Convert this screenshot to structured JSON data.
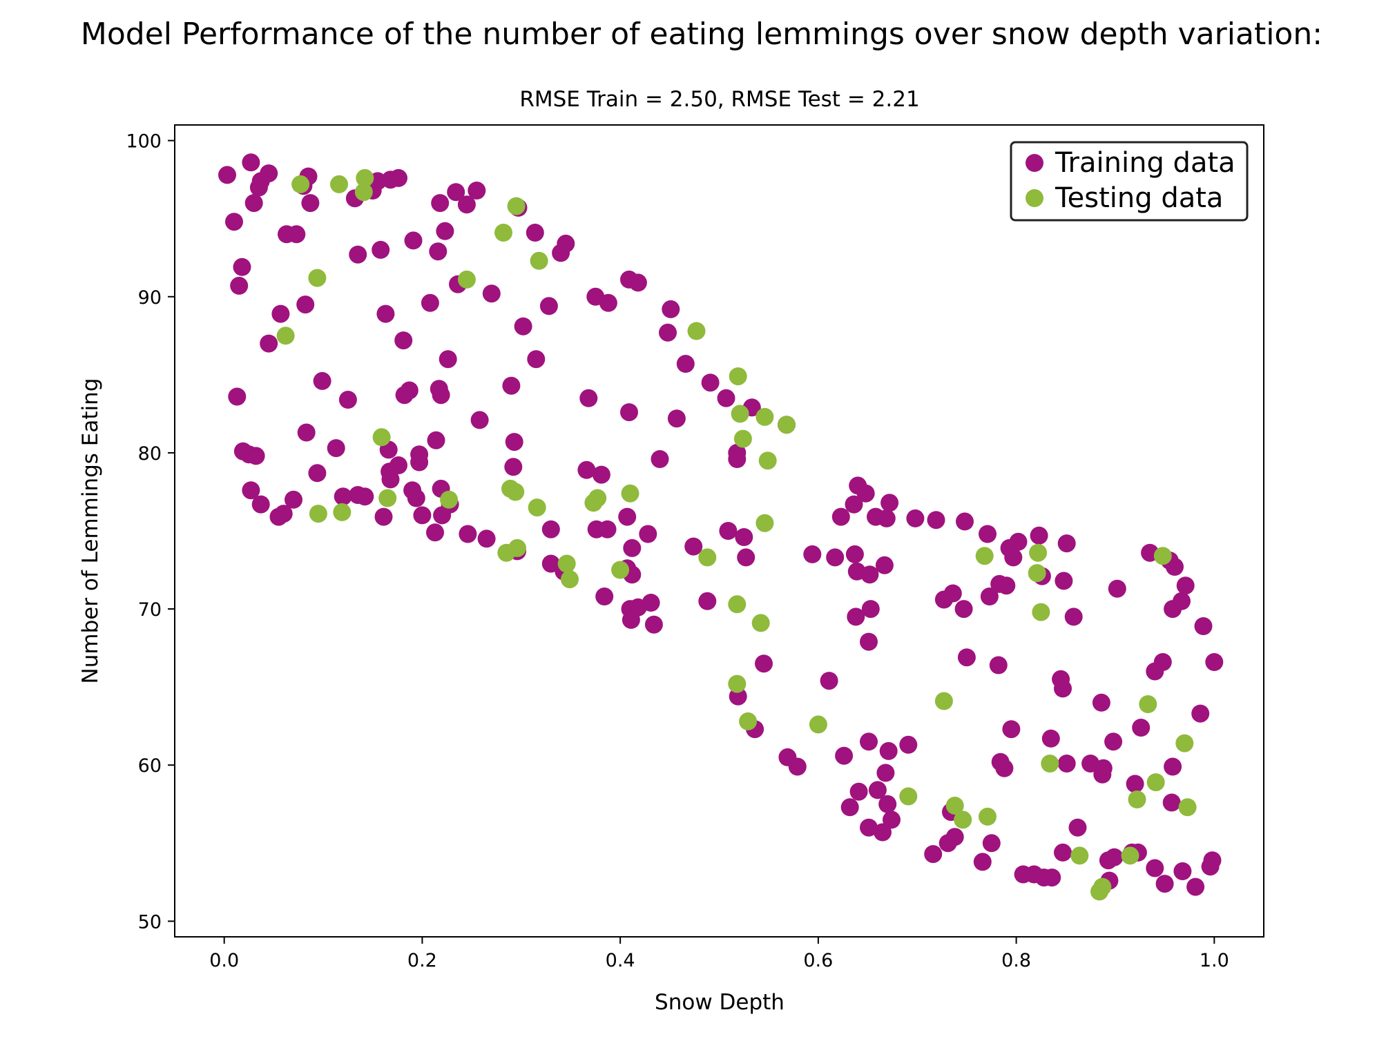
{
  "chart_data": {
    "type": "scatter",
    "title": "Model Performance of the number of eating lemmings over snow depth variation:",
    "subtitle": "RMSE Train = 2.50, RMSE Test = 2.21",
    "xlabel": "Snow Depth",
    "ylabel": "Number of Lemmings Eating",
    "xlim": [
      -0.05,
      1.05
    ],
    "ylim": [
      49,
      101
    ],
    "xticks": [
      0.0,
      0.2,
      0.4,
      0.6,
      0.8,
      1.0
    ],
    "xtick_labels": [
      "0.0",
      "0.2",
      "0.4",
      "0.6",
      "0.8",
      "1.0"
    ],
    "yticks": [
      50,
      60,
      70,
      80,
      90,
      100
    ],
    "ytick_labels": [
      "50",
      "60",
      "70",
      "80",
      "90",
      "100"
    ],
    "grid": false,
    "legend_position": "top-right",
    "series": [
      {
        "name": "Training data",
        "color": "#a0127e",
        "points": [
          [
            0.003,
            97.8
          ],
          [
            0.027,
            98.6
          ],
          [
            0.045,
            97.9
          ],
          [
            0.037,
            97.4
          ],
          [
            0.035,
            97.0
          ],
          [
            0.08,
            97.1
          ],
          [
            0.085,
            97.7
          ],
          [
            0.15,
            96.8
          ],
          [
            0.155,
            97.4
          ],
          [
            0.168,
            97.5
          ],
          [
            0.176,
            97.6
          ],
          [
            0.03,
            96.0
          ],
          [
            0.087,
            96.0
          ],
          [
            0.132,
            96.3
          ],
          [
            0.234,
            96.7
          ],
          [
            0.255,
            96.8
          ],
          [
            0.218,
            96.0
          ],
          [
            0.245,
            95.9
          ],
          [
            0.297,
            95.7
          ],
          [
            0.01,
            94.8
          ],
          [
            0.063,
            94.0
          ],
          [
            0.073,
            94.0
          ],
          [
            0.191,
            93.6
          ],
          [
            0.223,
            94.2
          ],
          [
            0.314,
            94.1
          ],
          [
            0.345,
            93.4
          ],
          [
            0.135,
            92.7
          ],
          [
            0.158,
            93.0
          ],
          [
            0.216,
            92.9
          ],
          [
            0.34,
            92.8
          ],
          [
            0.018,
            91.9
          ],
          [
            0.015,
            90.7
          ],
          [
            0.236,
            90.8
          ],
          [
            0.27,
            90.2
          ],
          [
            0.409,
            91.1
          ],
          [
            0.418,
            90.9
          ],
          [
            0.082,
            89.5
          ],
          [
            0.208,
            89.6
          ],
          [
            0.328,
            89.4
          ],
          [
            0.375,
            90.0
          ],
          [
            0.388,
            89.6
          ],
          [
            0.451,
            89.2
          ],
          [
            0.057,
            88.9
          ],
          [
            0.163,
            88.9
          ],
          [
            0.302,
            88.1
          ],
          [
            0.448,
            87.7
          ],
          [
            0.045,
            87.0
          ],
          [
            0.181,
            87.2
          ],
          [
            0.226,
            86.0
          ],
          [
            0.315,
            86.0
          ],
          [
            0.466,
            85.7
          ],
          [
            0.099,
            84.6
          ],
          [
            0.29,
            84.3
          ],
          [
            0.491,
            84.5
          ],
          [
            0.013,
            83.6
          ],
          [
            0.125,
            83.4
          ],
          [
            0.182,
            83.7
          ],
          [
            0.187,
            84.0
          ],
          [
            0.217,
            84.1
          ],
          [
            0.219,
            83.7
          ],
          [
            0.368,
            83.5
          ],
          [
            0.507,
            83.5
          ],
          [
            0.533,
            82.9
          ],
          [
            0.258,
            82.1
          ],
          [
            0.409,
            82.6
          ],
          [
            0.457,
            82.2
          ],
          [
            0.568,
            81.8
          ],
          [
            0.083,
            81.3
          ],
          [
            0.214,
            80.8
          ],
          [
            0.293,
            80.7
          ],
          [
            0.019,
            80.1
          ],
          [
            0.025,
            79.9
          ],
          [
            0.032,
            79.8
          ],
          [
            0.113,
            80.3
          ],
          [
            0.166,
            80.2
          ],
          [
            0.197,
            79.9
          ],
          [
            0.197,
            79.4
          ],
          [
            0.518,
            79.6
          ],
          [
            0.518,
            80.0
          ],
          [
            0.44,
            79.6
          ],
          [
            0.094,
            78.7
          ],
          [
            0.167,
            78.8
          ],
          [
            0.168,
            78.3
          ],
          [
            0.176,
            79.2
          ],
          [
            0.292,
            79.1
          ],
          [
            0.366,
            78.9
          ],
          [
            0.381,
            78.6
          ],
          [
            0.027,
            77.6
          ],
          [
            0.037,
            76.7
          ],
          [
            0.07,
            77.0
          ],
          [
            0.12,
            77.2
          ],
          [
            0.135,
            77.3
          ],
          [
            0.142,
            77.2
          ],
          [
            0.19,
            77.6
          ],
          [
            0.194,
            77.1
          ],
          [
            0.219,
            77.7
          ],
          [
            0.228,
            76.7
          ],
          [
            0.64,
            77.9
          ],
          [
            0.648,
            77.4
          ],
          [
            0.672,
            76.8
          ],
          [
            0.055,
            75.9
          ],
          [
            0.06,
            76.1
          ],
          [
            0.161,
            75.9
          ],
          [
            0.2,
            76.0
          ],
          [
            0.22,
            76.0
          ],
          [
            0.407,
            75.9
          ],
          [
            0.623,
            75.9
          ],
          [
            0.658,
            75.9
          ],
          [
            0.669,
            75.8
          ],
          [
            0.698,
            75.8
          ],
          [
            0.719,
            75.7
          ],
          [
            0.748,
            75.6
          ],
          [
            0.636,
            76.7
          ],
          [
            0.213,
            74.9
          ],
          [
            0.246,
            74.8
          ],
          [
            0.265,
            74.5
          ],
          [
            0.33,
            75.1
          ],
          [
            0.376,
            75.1
          ],
          [
            0.387,
            75.1
          ],
          [
            0.428,
            74.8
          ],
          [
            0.474,
            74.0
          ],
          [
            0.509,
            75.0
          ],
          [
            0.525,
            74.6
          ],
          [
            0.771,
            74.8
          ],
          [
            0.793,
            73.9
          ],
          [
            0.802,
            74.3
          ],
          [
            0.823,
            74.7
          ],
          [
            0.851,
            74.2
          ],
          [
            0.296,
            73.7
          ],
          [
            0.412,
            73.9
          ],
          [
            0.527,
            73.3
          ],
          [
            0.594,
            73.5
          ],
          [
            0.617,
            73.3
          ],
          [
            0.637,
            73.5
          ],
          [
            0.797,
            73.3
          ],
          [
            0.935,
            73.6
          ],
          [
            0.955,
            73.1
          ],
          [
            0.33,
            72.9
          ],
          [
            0.343,
            72.4
          ],
          [
            0.407,
            72.6
          ],
          [
            0.412,
            72.2
          ],
          [
            0.639,
            72.4
          ],
          [
            0.652,
            72.2
          ],
          [
            0.667,
            72.8
          ],
          [
            0.826,
            72.1
          ],
          [
            0.848,
            71.8
          ],
          [
            0.96,
            72.7
          ],
          [
            0.727,
            70.6
          ],
          [
            0.736,
            71.0
          ],
          [
            0.747,
            70.0
          ],
          [
            0.773,
            70.8
          ],
          [
            0.783,
            71.6
          ],
          [
            0.79,
            71.5
          ],
          [
            0.902,
            71.3
          ],
          [
            0.971,
            71.5
          ],
          [
            0.384,
            70.8
          ],
          [
            0.41,
            70.0
          ],
          [
            0.411,
            69.3
          ],
          [
            0.418,
            70.1
          ],
          [
            0.431,
            70.4
          ],
          [
            0.434,
            69.0
          ],
          [
            0.488,
            70.5
          ],
          [
            0.638,
            69.5
          ],
          [
            0.653,
            70.0
          ],
          [
            0.858,
            69.5
          ],
          [
            0.958,
            70.0
          ],
          [
            0.967,
            70.5
          ],
          [
            0.989,
            68.9
          ],
          [
            0.651,
            67.9
          ],
          [
            0.545,
            66.5
          ],
          [
            0.75,
            66.9
          ],
          [
            0.782,
            66.4
          ],
          [
            0.845,
            65.5
          ],
          [
            0.847,
            64.9
          ],
          [
            0.94,
            66.0
          ],
          [
            0.948,
            66.6
          ],
          [
            1.0,
            66.6
          ],
          [
            0.519,
            64.4
          ],
          [
            0.611,
            65.4
          ],
          [
            0.886,
            64.0
          ],
          [
            0.986,
            63.3
          ],
          [
            0.536,
            62.3
          ],
          [
            0.651,
            61.5
          ],
          [
            0.691,
            61.3
          ],
          [
            0.795,
            62.3
          ],
          [
            0.835,
            61.7
          ],
          [
            0.898,
            61.5
          ],
          [
            0.926,
            62.4
          ],
          [
            0.569,
            60.5
          ],
          [
            0.579,
            59.9
          ],
          [
            0.626,
            60.6
          ],
          [
            0.671,
            60.9
          ],
          [
            0.668,
            59.5
          ],
          [
            0.784,
            60.2
          ],
          [
            0.788,
            59.8
          ],
          [
            0.851,
            60.1
          ],
          [
            0.875,
            60.1
          ],
          [
            0.888,
            59.8
          ],
          [
            0.887,
            59.4
          ],
          [
            0.92,
            58.8
          ],
          [
            0.958,
            59.9
          ],
          [
            0.632,
            57.3
          ],
          [
            0.641,
            58.3
          ],
          [
            0.66,
            58.4
          ],
          [
            0.67,
            57.5
          ],
          [
            0.674,
            56.5
          ],
          [
            0.734,
            57.0
          ],
          [
            0.957,
            57.6
          ],
          [
            0.651,
            56.0
          ],
          [
            0.665,
            55.7
          ],
          [
            0.716,
            54.3
          ],
          [
            0.731,
            55.0
          ],
          [
            0.738,
            55.4
          ],
          [
            0.766,
            53.8
          ],
          [
            0.775,
            55.0
          ],
          [
            0.847,
            54.4
          ],
          [
            0.862,
            56.0
          ],
          [
            0.893,
            53.9
          ],
          [
            0.899,
            54.1
          ],
          [
            0.917,
            54.4
          ],
          [
            0.923,
            54.4
          ],
          [
            0.94,
            53.4
          ],
          [
            0.95,
            52.4
          ],
          [
            0.968,
            53.2
          ],
          [
            0.998,
            53.9
          ],
          [
            0.996,
            53.5
          ],
          [
            0.807,
            53.0
          ],
          [
            0.818,
            53.0
          ],
          [
            0.828,
            52.8
          ],
          [
            0.836,
            52.8
          ],
          [
            0.894,
            52.6
          ],
          [
            0.981,
            52.2
          ]
        ]
      },
      {
        "name": "Testing data",
        "color": "#8fba3c",
        "points": [
          [
            0.077,
            97.2
          ],
          [
            0.116,
            97.2
          ],
          [
            0.142,
            97.6
          ],
          [
            0.141,
            96.7
          ],
          [
            0.295,
            95.8
          ],
          [
            0.282,
            94.1
          ],
          [
            0.318,
            92.3
          ],
          [
            0.094,
            91.2
          ],
          [
            0.245,
            91.1
          ],
          [
            0.062,
            87.5
          ],
          [
            0.477,
            87.8
          ],
          [
            0.519,
            84.9
          ],
          [
            0.521,
            82.5
          ],
          [
            0.546,
            82.3
          ],
          [
            0.568,
            81.8
          ],
          [
            0.524,
            80.9
          ],
          [
            0.549,
            79.5
          ],
          [
            0.159,
            81.0
          ],
          [
            0.165,
            77.1
          ],
          [
            0.227,
            77.0
          ],
          [
            0.289,
            77.7
          ],
          [
            0.294,
            77.5
          ],
          [
            0.316,
            76.5
          ],
          [
            0.373,
            76.8
          ],
          [
            0.377,
            77.1
          ],
          [
            0.41,
            77.4
          ],
          [
            0.095,
            76.1
          ],
          [
            0.119,
            76.2
          ],
          [
            0.546,
            75.5
          ],
          [
            0.285,
            73.6
          ],
          [
            0.296,
            73.9
          ],
          [
            0.346,
            72.9
          ],
          [
            0.349,
            71.9
          ],
          [
            0.4,
            72.5
          ],
          [
            0.488,
            73.3
          ],
          [
            0.768,
            73.4
          ],
          [
            0.822,
            73.6
          ],
          [
            0.821,
            72.3
          ],
          [
            0.518,
            70.3
          ],
          [
            0.542,
            69.1
          ],
          [
            0.825,
            69.8
          ],
          [
            0.948,
            73.4
          ],
          [
            0.518,
            65.2
          ],
          [
            0.529,
            62.8
          ],
          [
            0.6,
            62.6
          ],
          [
            0.727,
            64.1
          ],
          [
            0.933,
            63.9
          ],
          [
            0.834,
            60.1
          ],
          [
            0.97,
            61.4
          ],
          [
            0.691,
            58.0
          ],
          [
            0.738,
            57.4
          ],
          [
            0.746,
            56.5
          ],
          [
            0.771,
            56.7
          ],
          [
            0.922,
            57.8
          ],
          [
            0.941,
            58.9
          ],
          [
            0.973,
            57.3
          ],
          [
            0.864,
            54.2
          ],
          [
            0.915,
            54.2
          ],
          [
            0.887,
            52.2
          ],
          [
            0.884,
            51.9
          ]
        ]
      }
    ]
  }
}
